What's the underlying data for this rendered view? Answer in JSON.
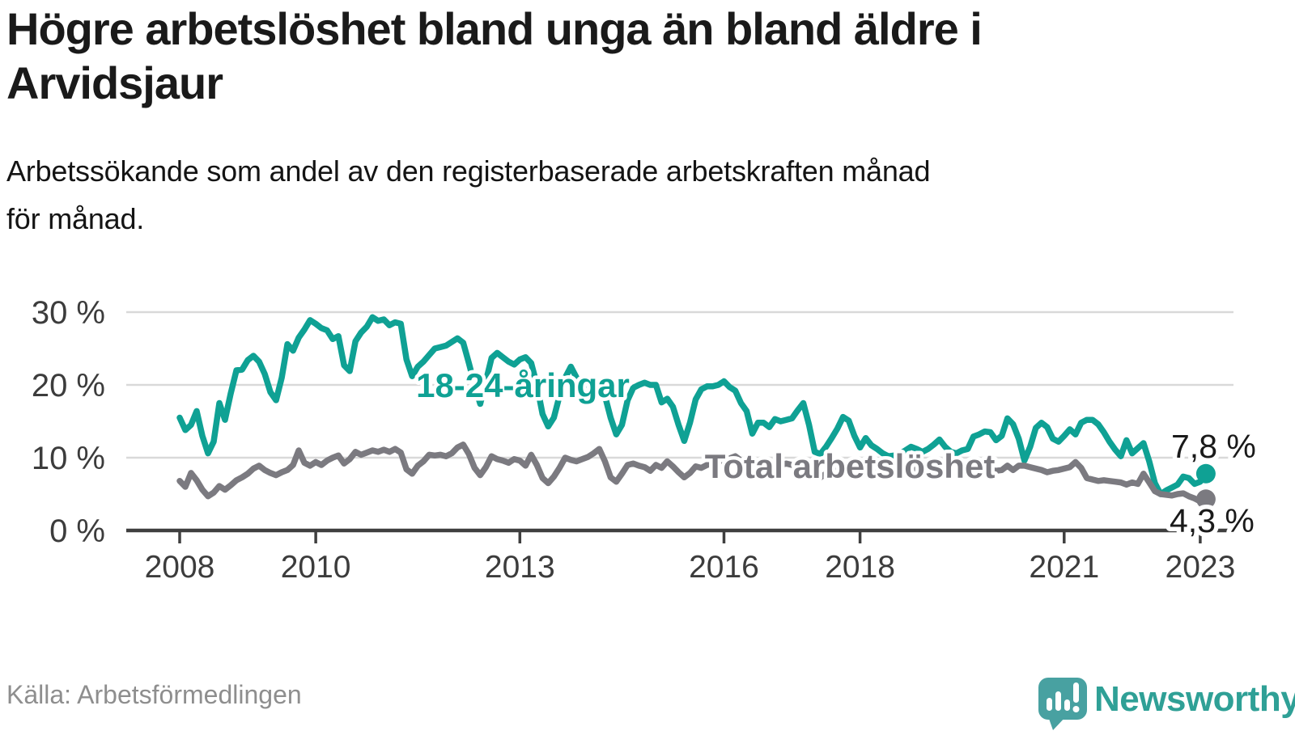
{
  "header": {
    "title_lines": [
      "Högre arbetslöshet bland unga än bland äldre i",
      "Arvidsjaur"
    ],
    "subtitle_lines": [
      "Arbetssökande som andel av den registerbaserade arbetskraften månad",
      "för månad."
    ]
  },
  "footer": {
    "source": "Källa: Arbetsförmedlingen",
    "brand": "Newsworthy",
    "logo_icon": "speech-bubble-bar-chart-exclamation",
    "brand_color": "#2fa096",
    "logo_color": "#48a1a1"
  },
  "chart_data": {
    "type": "line",
    "title": "Högre arbetslöshet bland unga än bland äldre i Arvidsjaur",
    "subtitle": "Arbetssökande som andel av den registerbaserade arbetskraften månad för månad.",
    "x_start": "2008-01",
    "x_end": "2023-02",
    "x_step_months": 1,
    "grid": "horizontal",
    "ylim": [
      0,
      32
    ],
    "colors": {
      "grid": "#d9d9d9",
      "axis": "#3f3f3f",
      "tick_text": "#3c3c3c"
    },
    "y_axis": {
      "ticks": [
        {
          "value": 30,
          "label": "30 %",
          "gridline": true
        },
        {
          "value": 20,
          "label": "20 %",
          "gridline": true
        },
        {
          "value": 10,
          "label": "10 %",
          "gridline": true
        },
        {
          "value": 0,
          "label": "0 %",
          "gridline": false
        }
      ]
    },
    "x_axis": {
      "ticks": [
        {
          "year": 2008,
          "label": "2008"
        },
        {
          "year": 2010,
          "label": "2010"
        },
        {
          "year": 2013,
          "label": "2013"
        },
        {
          "year": 2016,
          "label": "2016"
        },
        {
          "year": 2018,
          "label": "2018"
        },
        {
          "year": 2021,
          "label": "2021"
        },
        {
          "year": 2023,
          "label": "2023"
        }
      ]
    },
    "series": [
      {
        "name": "18-24-åringar",
        "color": "#0fa194",
        "end_label": "7,8 %",
        "end_value": 7.8,
        "values": [
          15.5,
          13.8,
          14.5,
          16.4,
          13.0,
          10.6,
          12.2,
          17.5,
          15.2,
          18.8,
          22.0,
          22.1,
          23.4,
          24.0,
          23.2,
          21.5,
          19.0,
          17.9,
          21.0,
          25.6,
          24.7,
          26.5,
          27.6,
          28.9,
          28.4,
          27.8,
          27.5,
          26.3,
          26.7,
          22.7,
          21.9,
          26.0,
          27.2,
          28.0,
          29.3,
          28.8,
          29.0,
          28.2,
          28.6,
          28.4,
          23.5,
          21.2,
          22.5,
          23.2,
          24.1,
          25.0,
          25.2,
          25.4,
          25.9,
          26.4,
          25.8,
          23.0,
          20.0,
          17.4,
          20.5,
          23.7,
          24.4,
          23.8,
          23.2,
          22.8,
          23.5,
          23.8,
          23.0,
          20.0,
          16.0,
          14.3,
          15.5,
          18.5,
          21.0,
          22.5,
          21.0,
          19.7,
          20.2,
          19.8,
          20.0,
          18.5,
          15.5,
          13.2,
          14.5,
          17.9,
          19.6,
          20.0,
          20.3,
          20.0,
          20.0,
          17.6,
          18.1,
          17.0,
          14.5,
          12.3,
          14.8,
          18.0,
          19.4,
          19.8,
          19.8,
          20.0,
          20.5,
          19.7,
          19.2,
          17.5,
          16.4,
          13.3,
          14.8,
          14.8,
          14.2,
          15.3,
          15.0,
          15.2,
          15.4,
          16.5,
          17.5,
          14.5,
          10.8,
          10.5,
          11.5,
          12.7,
          14.0,
          15.6,
          15.1,
          13.0,
          11.4,
          12.7,
          11.7,
          11.2,
          10.6,
          10.2,
          10.3,
          10.5,
          11.0,
          11.5,
          11.2,
          10.8,
          11.2,
          11.8,
          12.5,
          11.5,
          10.8,
          10.6,
          11.0,
          11.2,
          12.9,
          13.2,
          13.6,
          13.5,
          12.4,
          13.0,
          15.4,
          14.6,
          12.6,
          9.6,
          11.5,
          14.1,
          14.8,
          14.2,
          12.6,
          12.2,
          13.0,
          13.9,
          13.2,
          14.8,
          15.2,
          15.2,
          14.6,
          13.5,
          12.2,
          11.1,
          10.2,
          12.4,
          10.6,
          11.3,
          12.0,
          9.5,
          6.5,
          5.0,
          5.5,
          5.9,
          6.3,
          7.4,
          7.2,
          6.4,
          6.7,
          7.8
        ]
      },
      {
        "name": "Total arbetslöshet",
        "color": "#7b7a80",
        "end_label": "4,3 %",
        "end_value": 4.3,
        "values": [
          6.8,
          6.0,
          7.9,
          6.9,
          5.6,
          4.7,
          5.2,
          6.1,
          5.6,
          6.2,
          6.9,
          7.3,
          7.8,
          8.5,
          8.9,
          8.3,
          7.9,
          7.6,
          8.0,
          8.3,
          9.0,
          11.0,
          9.3,
          8.9,
          9.4,
          9.0,
          9.6,
          10.0,
          10.3,
          9.2,
          9.8,
          10.8,
          10.4,
          10.7,
          11.0,
          10.8,
          11.1,
          10.8,
          11.2,
          10.7,
          8.4,
          7.8,
          8.9,
          9.5,
          10.4,
          10.3,
          10.4,
          10.2,
          10.6,
          11.4,
          11.8,
          10.5,
          8.6,
          7.6,
          8.7,
          10.2,
          9.8,
          9.6,
          9.3,
          9.8,
          9.6,
          8.9,
          10.4,
          9.0,
          7.2,
          6.5,
          7.4,
          8.6,
          10.0,
          9.7,
          9.5,
          9.8,
          10.1,
          10.6,
          11.2,
          9.5,
          7.3,
          6.7,
          7.8,
          9.0,
          9.2,
          8.9,
          8.7,
          8.2,
          9.0,
          8.6,
          9.5,
          8.8,
          8.0,
          7.3,
          7.9,
          8.8,
          8.6,
          9.0,
          9.2,
          9.4,
          9.7,
          9.9,
          10.2,
          9.6,
          8.9,
          7.9,
          8.4,
          8.7,
          8.3,
          8.7,
          9.0,
          9.2,
          9.0,
          9.3,
          9.5,
          8.6,
          7.6,
          7.3,
          7.8,
          8.2,
          8.4,
          8.7,
          8.5,
          8.0,
          7.9,
          8.3,
          8.5,
          8.1,
          7.6,
          7.3,
          7.6,
          7.8,
          8.0,
          8.3,
          8.4,
          8.2,
          8.3,
          8.5,
          8.7,
          8.3,
          7.9,
          7.7,
          8.0,
          8.2,
          8.4,
          8.5,
          8.4,
          8.3,
          8.2,
          8.3,
          8.9,
          8.3,
          8.9,
          8.9,
          8.7,
          8.5,
          8.3,
          8.0,
          8.2,
          8.3,
          8.5,
          8.7,
          9.4,
          8.6,
          7.2,
          7.0,
          6.8,
          6.9,
          6.8,
          6.7,
          6.6,
          6.3,
          6.6,
          6.4,
          7.8,
          6.6,
          5.4,
          5.0,
          4.9,
          4.8,
          5.0,
          5.1,
          4.7,
          4.4,
          4.0,
          4.3
        ]
      }
    ]
  }
}
